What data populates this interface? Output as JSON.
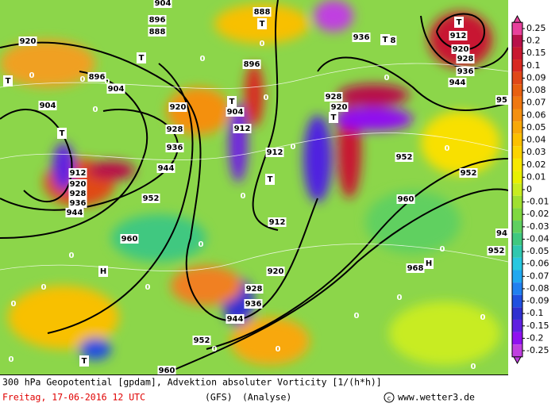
{
  "map": {
    "labels": [
      "904",
      "896",
      "888",
      "888",
      "920",
      "T",
      "896",
      "904",
      "T",
      "904",
      "920",
      "T",
      "904",
      "912",
      "928",
      "T",
      "936",
      "944",
      "912",
      "920",
      "928",
      "936",
      "944",
      "952",
      "960",
      "H",
      "T",
      "912",
      "912",
      "920",
      "928",
      "936",
      "944",
      "952",
      "960",
      "T",
      "896",
      "T",
      "936",
      "T",
      "8",
      "912",
      "T",
      "920",
      "928",
      "936",
      "944",
      "928",
      "920",
      "T",
      "952",
      "952",
      "960",
      "H",
      "968",
      "952",
      "94",
      "95",
      "0",
      "0",
      "0",
      "0",
      "0",
      "0",
      "0",
      "0",
      "0",
      "0",
      "0",
      "0",
      "0",
      "0",
      "0",
      "0",
      "0",
      "0",
      "0",
      "0",
      "0",
      "0",
      "0",
      "0"
    ]
  },
  "legend": {
    "labels": [
      "0.25",
      "0.2",
      "0.15",
      "0.1",
      "0.09",
      "0.08",
      "0.07",
      "0.06",
      "0.05",
      "0.04",
      "0.03",
      "0.02",
      "0.01",
      "0",
      "-0.01",
      "-0.02",
      "-0.03",
      "-0.04",
      "-0.05",
      "-0.06",
      "-0.07",
      "-0.08",
      "-0.09",
      "-0.1",
      "-0.15",
      "-0.2",
      "-0.25"
    ],
    "colors": [
      "#e8409c",
      "#b8104a",
      "#c81830",
      "#d82a20",
      "#e04818",
      "#e86010",
      "#f07810",
      "#f49010",
      "#f8a808",
      "#fcc000",
      "#fcd400",
      "#f8e800",
      "#e8f000",
      "#c8ec20",
      "#a0e030",
      "#80d840",
      "#60d060",
      "#40c880",
      "#30c8b0",
      "#28c8e0",
      "#20a8f0",
      "#2080f0",
      "#2050e0",
      "#3030d0",
      "#6020e0",
      "#9010f0",
      "#c040e0"
    ]
  },
  "footer": {
    "title": "300 hPa Geopotential [gpdam], Advektion absoluter Vorticity [1/(h*h)]",
    "date": "Freitag, 17-06-2016  12 UTC",
    "model": "(GFS)",
    "run": "(Analyse)",
    "site": "www.wetter3.de"
  }
}
